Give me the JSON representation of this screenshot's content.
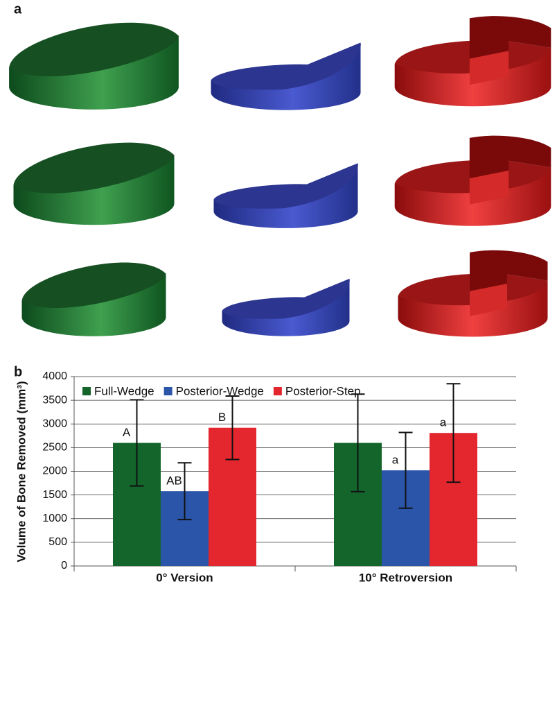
{
  "panel_labels": [
    "a",
    "b"
  ],
  "chart_data": {
    "type": "bar",
    "y_label": "Volume of Bone Removed (mm³)",
    "categories": [
      "0° Version",
      "10° Retroversion"
    ],
    "series": [
      {
        "name": "Full-Wedge",
        "color": "#13652b",
        "values": [
          2600,
          2600
        ],
        "errors": [
          910,
          1030
        ],
        "annotations": [
          "A",
          null
        ]
      },
      {
        "name": "Posterior-Wedge",
        "color": "#2a55a8",
        "values": [
          1580,
          2020
        ],
        "errors": [
          600,
          800
        ],
        "annotations": [
          "AB",
          "a"
        ]
      },
      {
        "name": "Posterior-Step",
        "color": "#e4272f",
        "values": [
          2920,
          2810
        ],
        "errors": [
          670,
          1040
        ],
        "annotations": [
          "B",
          "a"
        ]
      }
    ],
    "ylim": [
      0,
      4000
    ],
    "yticks": [
      0,
      500,
      1000,
      1500,
      2000,
      2500,
      3000,
      3500,
      4000
    ],
    "grid": true,
    "legend": "top-left"
  }
}
